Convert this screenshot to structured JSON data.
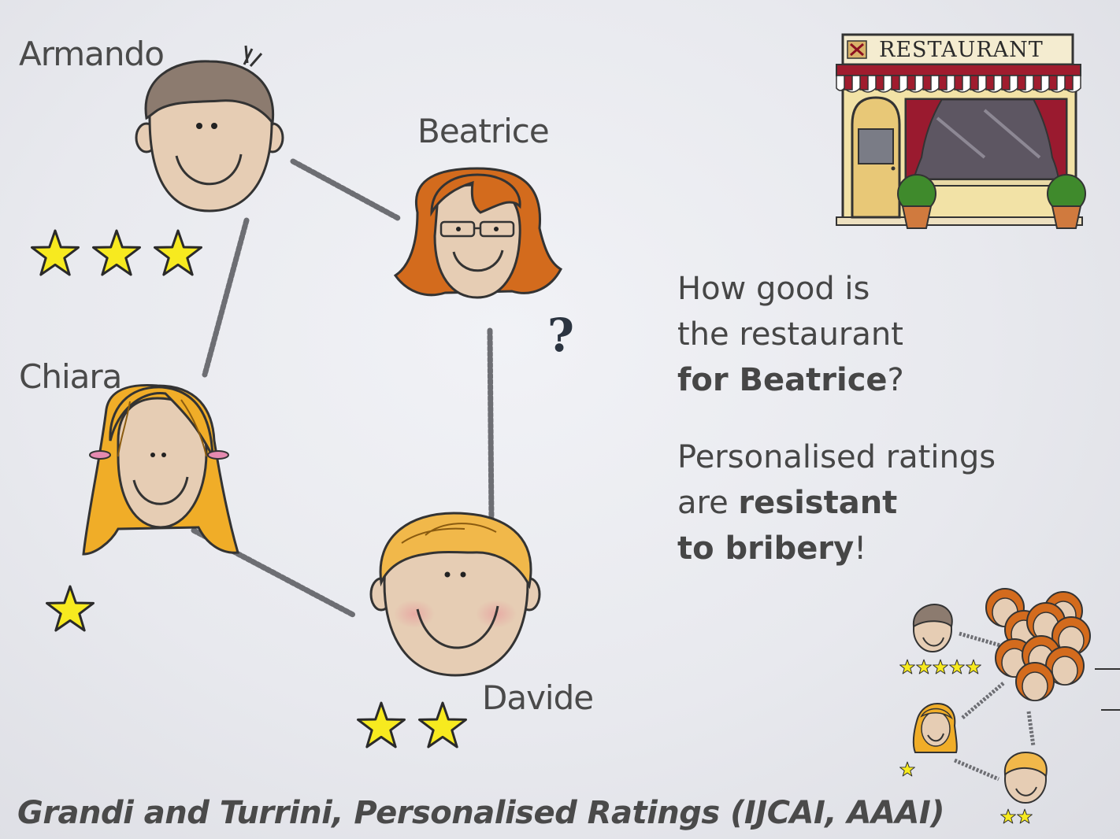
{
  "people": {
    "armando": {
      "name": "Armando",
      "stars": 3
    },
    "beatrice": {
      "name": "Beatrice",
      "rating_unknown_mark": "?"
    },
    "chiara": {
      "name": "Chiara",
      "stars": 1
    },
    "davide": {
      "name": "Davide",
      "stars": 2
    }
  },
  "restaurant": {
    "sign": "RESTAURANT"
  },
  "question": {
    "line1": "How good is",
    "line2": "the restaurant",
    "line3_bold": "for Beatrice",
    "line3_tail": "?"
  },
  "claim": {
    "line1": "Personalised ratings",
    "line2_plain": "are ",
    "line2_bold": "resistant",
    "line3_bold": "to bribery",
    "line3_tail": "!"
  },
  "mini_diagram": {
    "armando_stars": 5,
    "chiara_stars": 1,
    "davide_stars": 2
  },
  "citation": "Grandi and Turrini, Personalised Ratings (IJCAI, AAAI)",
  "colors": {
    "star_fill": "#f7ea1f",
    "connector": "#6d6e73",
    "skin": "#e6cdb4",
    "armando_hair": "#8c7b6f",
    "beatrice_hair": "#d36b1d",
    "chiara_hair": "#f0ad28",
    "davide_hair": "#f1b84a"
  }
}
